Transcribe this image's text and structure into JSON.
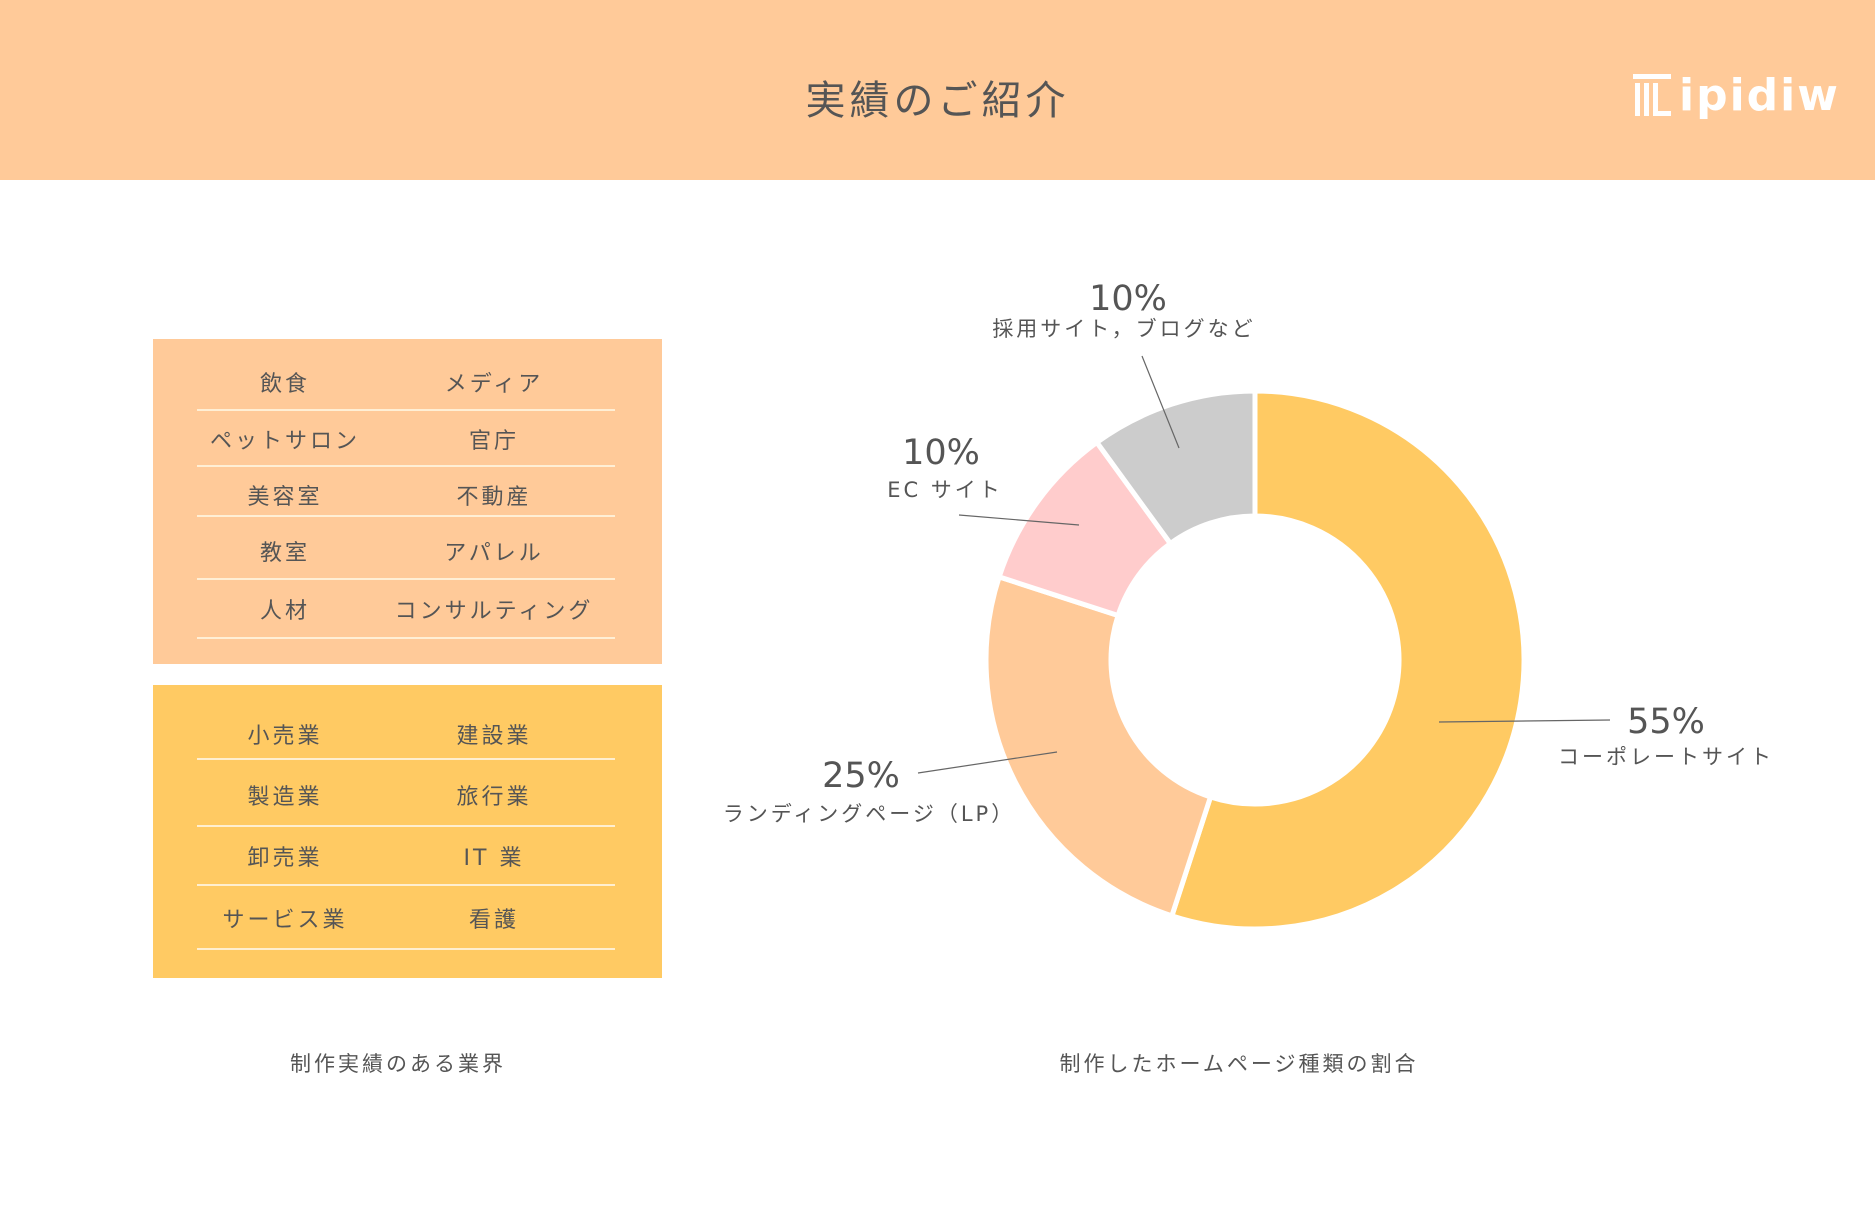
{
  "header": {
    "title": "実績のご紹介",
    "logo_text": "ipidiw",
    "background": "#FFCA99"
  },
  "industries": {
    "group1": [
      [
        "飲食",
        "メディア"
      ],
      [
        "ペットサロン",
        "官庁"
      ],
      [
        "美容室",
        "不動産"
      ],
      [
        "教室",
        "アパレル"
      ],
      [
        "人材",
        "コンサルティング"
      ]
    ],
    "group2": [
      [
        "小売業",
        "建設業"
      ],
      [
        "製造業",
        "旅行業"
      ],
      [
        "卸売業",
        "IT 業"
      ],
      [
        "サービス業",
        "看護"
      ]
    ],
    "group1_color": "#FFCA99",
    "group2_color": "#FFCA63",
    "caption": "制作実績のある業界"
  },
  "chart_data": {
    "type": "pie",
    "variant": "donut",
    "caption": "制作したホームページ種類の割合",
    "start": "top, clockwise",
    "slices": [
      {
        "label": "コーポレートサイト",
        "value": 55,
        "display": "55%",
        "color": "#FFCA63"
      },
      {
        "label": "ランディングページ（LP）",
        "value": 25,
        "display": "25%",
        "color": "#FFCA99"
      },
      {
        "label": "EC サイト",
        "value": 10,
        "display": "10%",
        "color": "#FFCCCC"
      },
      {
        "label": "採用サイト，ブログなど",
        "value": 10,
        "display": "10%",
        "color": "#CCCCCC"
      }
    ]
  }
}
